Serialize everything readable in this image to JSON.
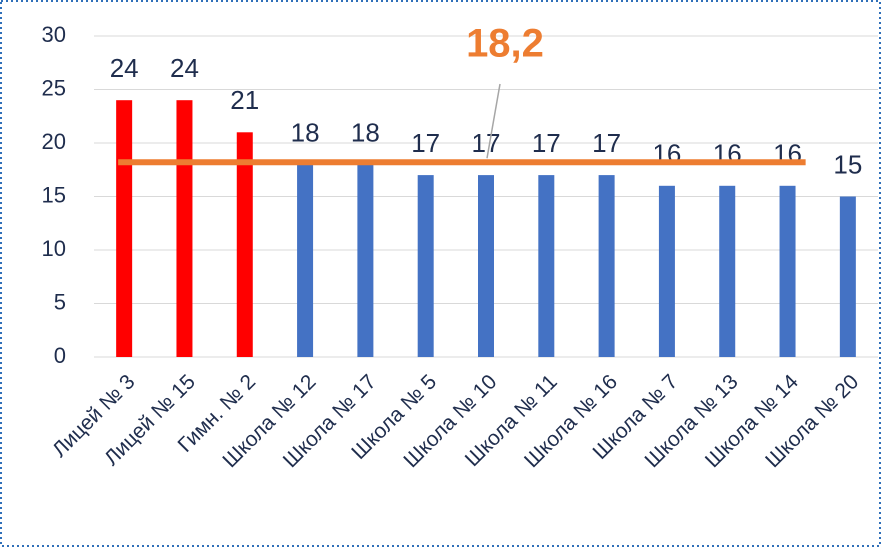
{
  "chart_data": {
    "type": "bar",
    "categories": [
      "Лицей № 3",
      "Лицей № 15",
      "Гимн. № 2",
      "Школа № 12",
      "Школа № 17",
      "Школа № 5",
      "Школа № 10",
      "Школа № 11",
      "Школа № 16",
      "Школа № 7",
      "Школа № 13",
      "Школа № 14",
      "Школа № 20"
    ],
    "values": [
      24,
      24,
      21,
      18,
      18,
      17,
      17,
      17,
      17,
      16,
      16,
      16,
      15
    ],
    "colors": [
      "#ff0000",
      "#ff0000",
      "#ff0000",
      "#4472c4",
      "#4472c4",
      "#4472c4",
      "#4472c4",
      "#4472c4",
      "#4472c4",
      "#4472c4",
      "#4472c4",
      "#4472c4",
      "#4472c4"
    ],
    "ylim": [
      0,
      30
    ],
    "yticks": [
      0,
      5,
      10,
      15,
      20,
      25,
      30
    ],
    "grid": true,
    "average": {
      "value": 18.2,
      "label": "18,2",
      "color": "#ed7d31"
    }
  }
}
